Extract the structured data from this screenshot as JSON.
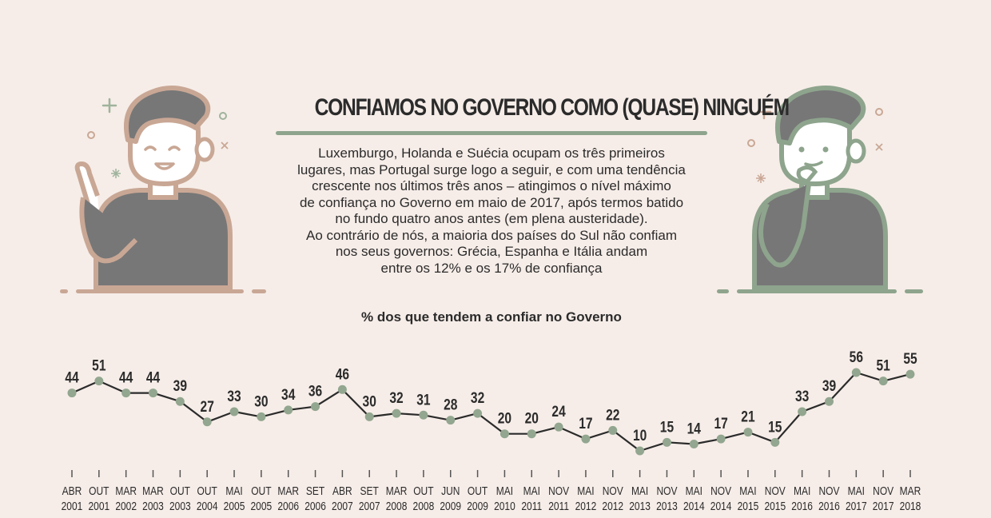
{
  "header": {
    "title": "CONFIAMOS NO GOVERNO COMO (QUASE) NINGUÉM",
    "description_lines": [
      "Luxemburgo, Holanda e Suécia ocupam os três primeiros",
      "lugares, mas Portugal surge logo a seguir, e com uma tendência",
      "crescente nos últimos três anos – atingimos o nível máximo",
      "de confiança no Governo em maio de 2017, após termos batido",
      "no fundo quatro anos antes (em plena austeridade).",
      "Ao contrário de nós, a maioria dos países do Sul não confiam",
      "nos seus governos: Grécia, Espanha e Itália andam",
      "entre os 12% e os 17% de confiança"
    ]
  },
  "illustrations": {
    "left": {
      "icon": "pointing-person-icon",
      "color": "#c9a795"
    },
    "right": {
      "icon": "thinking-person-icon",
      "color": "#8ea48d"
    }
  },
  "colors": {
    "background": "#f6ede8",
    "line": "#2b2b2b",
    "point": "#93a68f",
    "accent_green": "#8ea48d",
    "accent_rose": "#c9a795",
    "figure_gray": "#777777"
  },
  "chart_data": {
    "type": "line",
    "title": "% dos que tendem a confiar no Governo",
    "categories": [
      [
        "ABR",
        "2001"
      ],
      [
        "OUT",
        "2001"
      ],
      [
        "MAR",
        "2002"
      ],
      [
        "MAR",
        "2003"
      ],
      [
        "OUT",
        "2003"
      ],
      [
        "OUT",
        "2004"
      ],
      [
        "MAI",
        "2005"
      ],
      [
        "OUT",
        "2005"
      ],
      [
        "MAR",
        "2006"
      ],
      [
        "SET",
        "2006"
      ],
      [
        "ABR",
        "2007"
      ],
      [
        "SET",
        "2007"
      ],
      [
        "MAR",
        "2008"
      ],
      [
        "OUT",
        "2008"
      ],
      [
        "JUN",
        "2009"
      ],
      [
        "OUT",
        "2009"
      ],
      [
        "MAI",
        "2010"
      ],
      [
        "MAI",
        "2011"
      ],
      [
        "NOV",
        "2011"
      ],
      [
        "MAI",
        "2012"
      ],
      [
        "NOV",
        "2012"
      ],
      [
        "MAI",
        "2013"
      ],
      [
        "NOV",
        "2013"
      ],
      [
        "MAI",
        "2014"
      ],
      [
        "NOV",
        "2014"
      ],
      [
        "MAI",
        "2015"
      ],
      [
        "NOV",
        "2015"
      ],
      [
        "MAI",
        "2016"
      ],
      [
        "NOV",
        "2016"
      ],
      [
        "MAI",
        "2017"
      ],
      [
        "NOV",
        "2017"
      ],
      [
        "MAR",
        "2018"
      ]
    ],
    "values": [
      44,
      51,
      44,
      44,
      39,
      27,
      33,
      30,
      34,
      36,
      46,
      30,
      32,
      31,
      28,
      32,
      20,
      20,
      24,
      17,
      22,
      10,
      15,
      14,
      17,
      21,
      15,
      33,
      39,
      56,
      51,
      55
    ],
    "xlabel": "",
    "ylabel": "",
    "ylim": [
      10,
      56
    ],
    "grid": false,
    "legend": "none"
  }
}
